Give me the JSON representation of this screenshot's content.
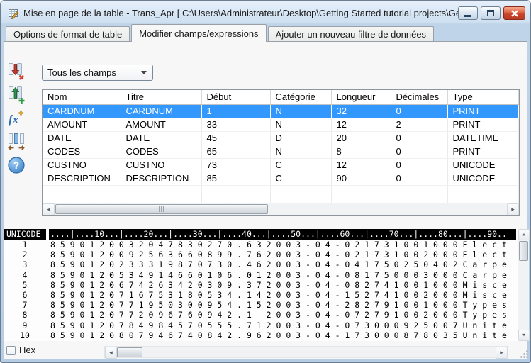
{
  "window": {
    "title": "Mise en page de la table - Trans_Apr [ C:\\Users\\Administrateur\\Desktop\\Getting Started tutorial projects\\Getting S..."
  },
  "tabs": [
    {
      "label": "Options de format de table",
      "active": false
    },
    {
      "label": "Modifier champs/expressions",
      "active": true
    },
    {
      "label": "Ajouter un nouveau filtre de données",
      "active": false
    }
  ],
  "toolbar": {
    "buttons": [
      {
        "id": "delete-field-button",
        "icon": "column-delete-red-arrow-icon"
      },
      {
        "id": "add-field-button",
        "icon": "column-add-green-arrow-icon"
      },
      {
        "id": "edit-expression-button",
        "icon": "fx-expression-icon"
      },
      {
        "id": "field-width-button",
        "icon": "column-width-arrows-icon"
      },
      {
        "id": "help-button",
        "icon": "help-question-icon"
      }
    ]
  },
  "field_filter": {
    "value": "Tous les champs"
  },
  "fields_table": {
    "columns": [
      "Nom",
      "Titre",
      "Début",
      "Catégorie",
      "Longueur",
      "Décimales",
      "Type"
    ],
    "rows": [
      [
        "CARDNUM",
        "CARDNUM",
        "1",
        "N",
        "32",
        "0",
        "PRINT"
      ],
      [
        "AMOUNT",
        "AMOUNT",
        "33",
        "N",
        "12",
        "2",
        "PRINT"
      ],
      [
        "DATE",
        "DATE",
        "45",
        "D",
        "20",
        "0",
        "DATETIME"
      ],
      [
        "CODES",
        "CODES",
        "65",
        "N",
        "8",
        "0",
        "PRINT"
      ],
      [
        "CUSTNO",
        "CUSTNO",
        "73",
        "C",
        "12",
        "0",
        "UNICODE"
      ],
      [
        "DESCRIPTION",
        "DESCRIPTION",
        "85",
        "C",
        "90",
        "0",
        "UNICODE"
      ]
    ],
    "selected_row_index": 0,
    "selection_color": "#3398fe"
  },
  "data_view": {
    "encoding_label": "UNICODE",
    "ruler": "....|....10...|....20...|....30...|....40...|....50...|....60...|....70...|....80...|....90..",
    "rows": [
      {
        "num": "1",
        "text": "8 5 9 0 1 2 0 0 3 2 0 4 7 8 3 0 2 7 0 . 6 3 2 0 0 3 - 0 4 - 0 2 1 7 3 1 0 0 1 0 0 0 E l e c t"
      },
      {
        "num": "2",
        "text": "8 5 9 0 1 2 0 0 9 2 5 6 3 6 6 0 8 9 9 . 7 6 2 0 0 3 - 0 4 - 0 2 1 7 3 1 0 0 2 0 0 0 E l e c t"
      },
      {
        "num": "3",
        "text": "8 5 9 0 1 2 0 2 3 3 3 1 9 8 7 0 7 3 0 . 4 6 2 0 0 3 - 0 4 - 0 4 1 7 5 0 2 5 0 4 0 2 C a r p e"
      },
      {
        "num": "4",
        "text": "8 5 9 0 1 2 0 5 3 4 9 1 4 6 6 0 1 0 6 . 0 1 2 0 0 3 - 0 4 - 0 8 1 7 5 0 0 0 3 0 0 0 C a r p e"
      },
      {
        "num": "5",
        "text": "8 5 9 0 1 2 0 6 7 4 2 6 3 4 2 0 3 0 9 . 3 7 2 0 0 3 - 0 4 - 0 8 2 7 4 1 0 0 1 0 0 0 M i s c e"
      },
      {
        "num": "6",
        "text": "8 5 9 0 1 2 0 7 1 6 7 5 3 1 8 0 5 3 4 . 1 4 2 0 0 3 - 0 4 - 1 5 2 7 4 1 0 0 2 0 0 0 M i s c e"
      },
      {
        "num": "7",
        "text": "8 5 9 0 1 2 0 7 7 1 9 5 0 3 0 0 9 5 4 . 1 5 2 0 0 3 - 0 4 - 2 8 2 7 9 1 0 0 1 0 0 0 T y p e s"
      },
      {
        "num": "8",
        "text": "8 5 9 0 1 2 0 7 7 2 0 9 6 7 6 0 9 4 2 . 1   2 0 0 3 - 0 4 - 0 7 2 7 9 1 0 0 2 0 0 0 T y p e s"
      },
      {
        "num": "9",
        "text": "8 5 9 0 1 2 0 7 8 4 9 8 4 5 7 0 5 5 5 . 7 1 2 0 0 3 - 0 4 - 0 7 3 0 0 0 9 2 5 0 0 7 U n i t e"
      },
      {
        "num": "10",
        "text": "8 5 9 0 1 2 0 8 0 7 9 4 6 7 4 0 8 4 2 . 9 6 2 0 0 3 - 0 4 - 1 7 3 0 0 0 8 7 8 0 3 5 U n i t e"
      }
    ]
  },
  "footer": {
    "hex_checkbox_label": "Hex",
    "hex_checked": false
  }
}
